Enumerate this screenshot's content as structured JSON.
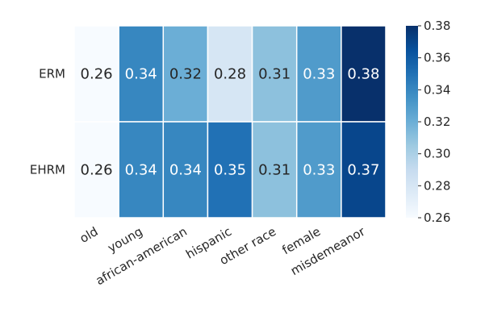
{
  "chart_data": {
    "type": "heatmap",
    "rows": [
      "ERM",
      "EHRM"
    ],
    "columns": [
      "old",
      "young",
      "african-american",
      "hispanic",
      "other race",
      "female",
      "misdemeanor"
    ],
    "values": [
      [
        0.26,
        0.34,
        0.32,
        0.28,
        0.31,
        0.33,
        0.38
      ],
      [
        0.26,
        0.34,
        0.34,
        0.35,
        0.31,
        0.33,
        0.37
      ]
    ],
    "labels": [
      [
        "0.26",
        "0.34",
        "0.32",
        "0.28",
        "0.31",
        "0.33",
        "0.38"
      ],
      [
        "0.26",
        "0.34",
        "0.34",
        "0.35",
        "0.31",
        "0.33",
        "0.37"
      ]
    ],
    "colormap": "Blues",
    "colorbar": {
      "vmin": 0.26,
      "vmax": 0.38,
      "ticks": [
        0.26,
        0.28,
        0.3,
        0.32,
        0.34,
        0.36,
        0.38
      ],
      "tick_labels": [
        "0.26",
        "0.28",
        "0.30",
        "0.32",
        "0.34",
        "0.36",
        "0.38"
      ]
    },
    "title": "",
    "xlabel": "",
    "ylabel": ""
  }
}
